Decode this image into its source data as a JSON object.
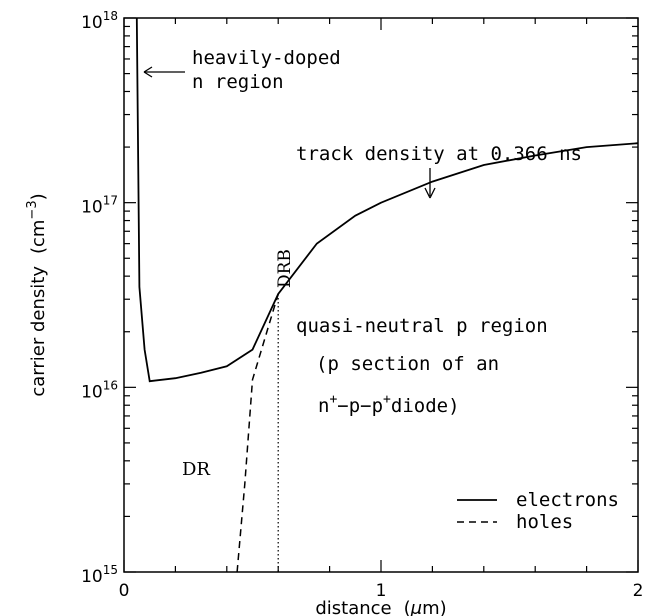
{
  "chart_data": {
    "type": "line",
    "xlabel_text": "distance",
    "xlabel_unit_open": "(",
    "xlabel_unit_mu": "μ",
    "xlabel_unit_close": "m)",
    "ylabel_text": "carrier density",
    "ylabel_unit_open": "(cm",
    "ylabel_unit_exp": "−3",
    "ylabel_unit_close": ")",
    "x_scale": "linear",
    "y_scale": "log",
    "xlim": [
      0,
      2
    ],
    "ylim": [
      1000000000000000.0,
      1e+18
    ],
    "x_ticks": [
      {
        "value": 0,
        "label": "0"
      },
      {
        "value": 1,
        "label": "1"
      },
      {
        "value": 2,
        "label": "2"
      }
    ],
    "y_ticks": [
      {
        "value": 1000000000000000.0,
        "base": "10",
        "exp": "15"
      },
      {
        "value": 1e+16,
        "base": "10",
        "exp": "16"
      },
      {
        "value": 1e+17,
        "base": "10",
        "exp": "17"
      },
      {
        "value": 1e+18,
        "base": "10",
        "exp": "18"
      }
    ],
    "series": [
      {
        "name": "electrons",
        "style": "solid",
        "x": [
          0.05,
          0.06,
          0.08,
          0.1,
          0.2,
          0.3,
          0.4,
          0.5,
          0.6,
          0.75,
          0.9,
          1.0,
          1.2,
          1.4,
          1.6,
          1.8,
          2.0
        ],
        "y": [
          1e+18,
          3.5e+16,
          1.6e+16,
          1.08e+16,
          1.12e+16,
          1.2e+16,
          1.3e+16,
          1.6e+16,
          3.2e+16,
          6e+16,
          8.5e+16,
          1e+17,
          1.3e+17,
          1.6e+17,
          1.8e+17,
          2e+17,
          2.1e+17
        ]
      },
      {
        "name": "holes",
        "style": "dashed",
        "x": [
          0.44,
          0.47,
          0.5,
          0.6
        ],
        "y": [
          1000000000000000.0,
          3000000000000000.0,
          1.1e+16,
          3.2e+16
        ]
      }
    ],
    "drb_line_x": 0.6,
    "legend_position": "lower-right",
    "annotations": {
      "heavily_doped_line1": "heavily-doped",
      "heavily_doped_line2": "n region",
      "track_density": "track density at 0.366 ns",
      "drb": "DRB",
      "quasi_line1": "quasi-neutral p region",
      "quasi_line2": "(p section of an",
      "diode_n": "n",
      "diode_plus1": "+",
      "diode_mid": "−p−p",
      "diode_plus2": "+",
      "diode_end": "diode)",
      "dr": "DR"
    }
  }
}
